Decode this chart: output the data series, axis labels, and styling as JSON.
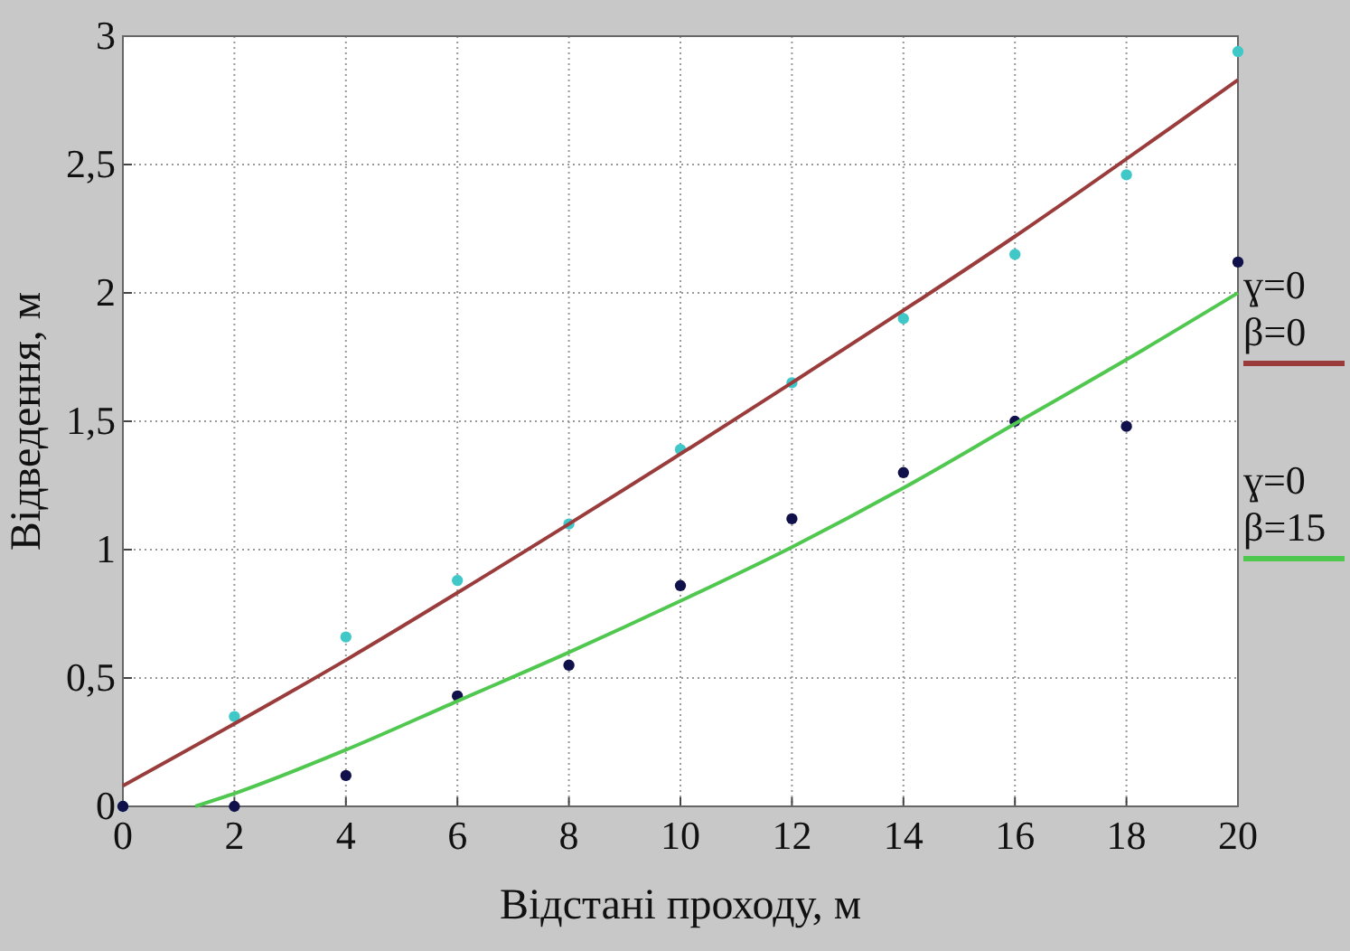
{
  "chart_data": {
    "type": "scatter",
    "xlabel": "Відстані проходу, м",
    "ylabel": "Відведення, м",
    "x": [
      0,
      2,
      4,
      6,
      8,
      10,
      12,
      14,
      16,
      18,
      20
    ],
    "xlim": [
      0,
      20
    ],
    "xticks": [
      0,
      2,
      4,
      6,
      8,
      10,
      12,
      14,
      16,
      18,
      20
    ],
    "ylim": [
      0,
      3
    ],
    "yticks": [
      0,
      {
        "value": 0.5,
        "label": "0,5"
      },
      1,
      {
        "value": 1.5,
        "label": "1,5"
      },
      2,
      {
        "value": 2.5,
        "label": "2,5"
      },
      3
    ],
    "grid": true,
    "legend": "right",
    "series": [
      {
        "marker": "circle",
        "color": "#40c8c8",
        "values": [
          0,
          0.35,
          0.66,
          0.88,
          1.1,
          1.39,
          1.65,
          1.9,
          2.15,
          2.46,
          2.94
        ]
      },
      {
        "marker": "circle",
        "color": "#10104a",
        "values": [
          0,
          0,
          0.12,
          0.43,
          0.55,
          0.86,
          1.12,
          1.3,
          1.5,
          1.48,
          2.12
        ]
      },
      {
        "type": "line",
        "name": "ɣ=0 β=0",
        "color": "#9a3c3c",
        "x": [
          0,
          4,
          8,
          12,
          16,
          20
        ],
        "values": [
          0.08,
          0.57,
          1.1,
          1.65,
          2.22,
          2.83
        ]
      },
      {
        "type": "line",
        "name": "ɣ=0 β=15",
        "color": "#50c850",
        "x": [
          1.3,
          2,
          4,
          6,
          8,
          10,
          12,
          14,
          16,
          18,
          20
        ],
        "values": [
          0,
          0.05,
          0.22,
          0.41,
          0.6,
          0.8,
          1.01,
          1.24,
          1.49,
          1.74,
          2.0
        ]
      }
    ]
  }
}
